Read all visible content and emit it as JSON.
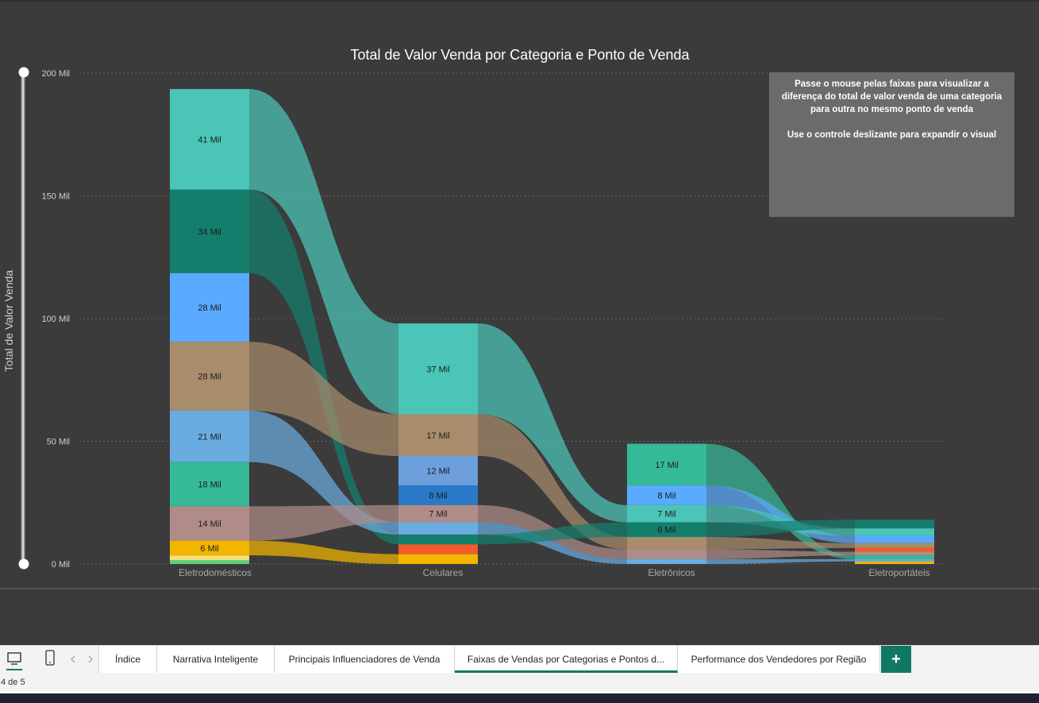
{
  "chart_data": {
    "type": "ribbon",
    "title": "Total de Valor Venda por Categoria e Ponto de Venda",
    "ylabel": "Total de Valor Venda",
    "ylim": [
      0,
      200000
    ],
    "yticks": [
      "200 Mil",
      "150 Mil",
      "100 Mil",
      "50 Mil",
      "0 Mil"
    ],
    "categories": [
      "Eletrodomésticos",
      "Celulares",
      "Eletrônicos",
      "Eletroportáteis"
    ],
    "segments": [
      [
        {
          "value": 41,
          "label": "41 Mil",
          "color": "#4bc5b7"
        },
        {
          "value": 34,
          "label": "34 Mil",
          "color": "#147e6d"
        },
        {
          "value": 28,
          "label": "28 Mil",
          "color": "#5aaaff"
        },
        {
          "value": 28,
          "label": "28 Mil",
          "color": "#a88c6c"
        },
        {
          "value": 21,
          "label": "21 Mil",
          "color": "#6aace0"
        },
        {
          "value": 18,
          "label": "18 Mil",
          "color": "#35b996"
        },
        {
          "value": 14,
          "label": "14 Mil",
          "color": "#b08c88"
        },
        {
          "value": 6,
          "label": "6 Mil",
          "color": "#f2b500"
        },
        {
          "value": 2,
          "label": "",
          "color": "#f7e07a"
        },
        {
          "value": 1.5,
          "label": "",
          "color": "#5ed07c"
        }
      ],
      [
        {
          "value": 37,
          "label": "37 Mil",
          "color": "#4bc5b7"
        },
        {
          "value": 17,
          "label": "17 Mil",
          "color": "#a88c6c"
        },
        {
          "value": 12,
          "label": "12 Mil",
          "color": "#6c9fdc"
        },
        {
          "value": 8,
          "label": "8 Mil",
          "color": "#2a78c8"
        },
        {
          "value": 7,
          "label": "7 Mil",
          "color": "#b08c88"
        },
        {
          "value": 5,
          "label": "",
          "color": "#6aace0"
        },
        {
          "value": 4,
          "label": "",
          "color": "#147e6d"
        },
        {
          "value": 4,
          "label": "",
          "color": "#f25c2a"
        },
        {
          "value": 4,
          "label": "",
          "color": "#f2b500"
        }
      ],
      [
        {
          "value": 17,
          "label": "17 Mil",
          "color": "#35b996"
        },
        {
          "value": 8,
          "label": "8 Mil",
          "color": "#5aaaff"
        },
        {
          "value": 7,
          "label": "7 Mil",
          "color": "#4bc5b7"
        },
        {
          "value": 6,
          "label": "6 Mil",
          "color": "#147e6d"
        },
        {
          "value": 5,
          "label": "",
          "color": "#a88c6c"
        },
        {
          "value": 4,
          "label": "",
          "color": "#b08c88"
        },
        {
          "value": 2,
          "label": "",
          "color": "#6aace0"
        }
      ],
      [
        {
          "value": 3.5,
          "label": "",
          "color": "#147e6d"
        },
        {
          "value": 3,
          "label": "",
          "color": "#4bc5b7"
        },
        {
          "value": 3,
          "label": "",
          "color": "#5aaaff"
        },
        {
          "value": 2,
          "label": "",
          "color": "#a88c6c"
        },
        {
          "value": 1.5,
          "label": "",
          "color": "#f25c2a"
        },
        {
          "value": 1.5,
          "label": "",
          "color": "#b08c88"
        },
        {
          "value": 1.5,
          "label": "",
          "color": "#35b996"
        },
        {
          "value": 1,
          "label": "",
          "color": "#6aace0"
        },
        {
          "value": 1,
          "label": "",
          "color": "#f2b500"
        }
      ]
    ]
  },
  "hint": {
    "line1": "Passe o mouse pelas faixas para visualizar a diferença do total de valor venda de uma categoria para outra no mesmo ponto de venda",
    "line2": "Use o controle deslizante para expandir o visual"
  },
  "tabs": [
    {
      "label": "Índice"
    },
    {
      "label": "Narrativa Inteligente"
    },
    {
      "label": "Principais Influenciadores de Venda"
    },
    {
      "label": "Faixas de Vendas por Categorias e Pontos d..."
    },
    {
      "label": "Performance dos Vendedores por Região"
    }
  ],
  "add_tab_symbol": "+",
  "page_indicator": "4 de 5",
  "icons": {
    "desktop": "desktop-icon",
    "phone": "phone-icon",
    "prev": "chevron-left-icon",
    "next": "chevron-right-icon"
  }
}
